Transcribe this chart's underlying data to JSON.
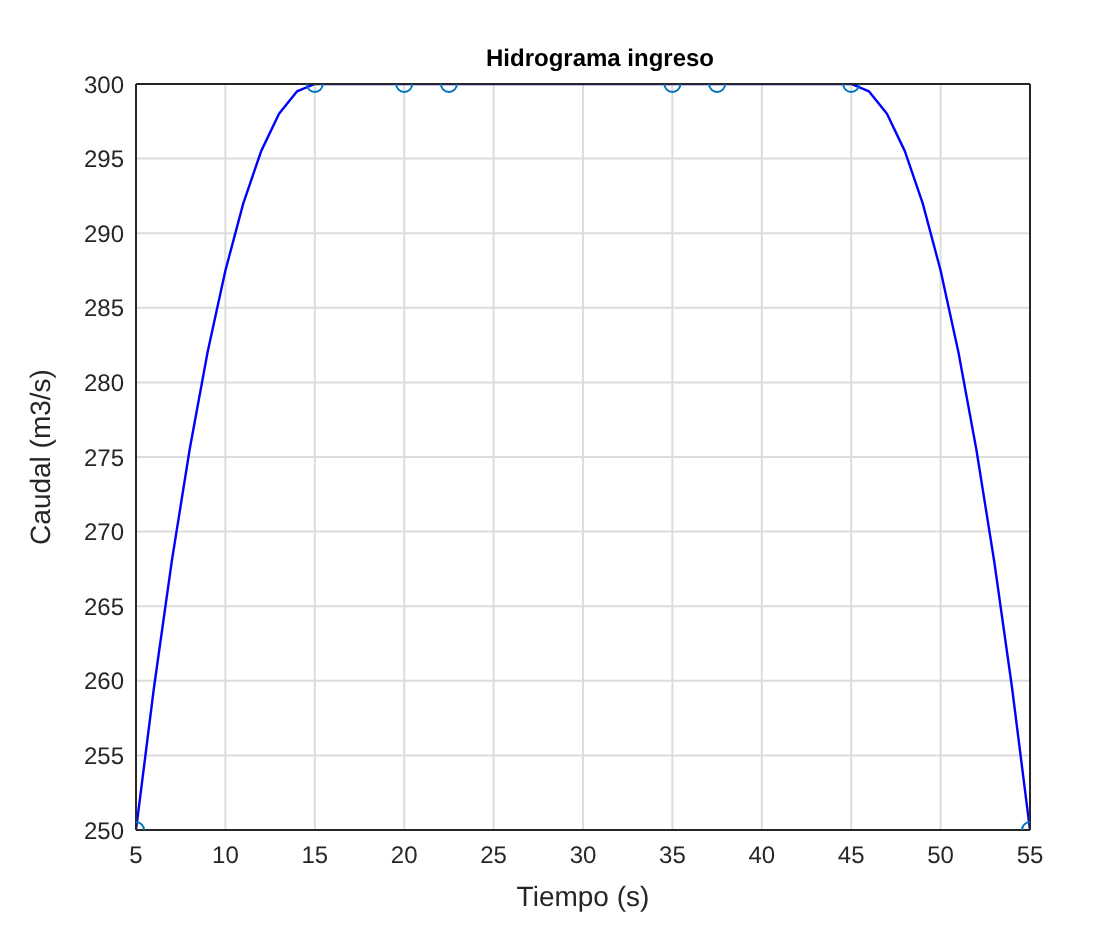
{
  "chart_data": {
    "type": "line",
    "title": "Hidrograma ingreso",
    "xlabel": "Tiempo (s)",
    "ylabel": "Caudal (m3/s)",
    "series": [
      {
        "color": "#0000ff",
        "marker": "none",
        "x": [
          5,
          6,
          7,
          8,
          9,
          10,
          11,
          12,
          13,
          14,
          15,
          20,
          22.5,
          35,
          37.5,
          45,
          46,
          47,
          48,
          49,
          50,
          51,
          52,
          53,
          54,
          55
        ],
        "values": [
          250,
          259.5,
          268,
          275.5,
          282,
          287.5,
          292,
          295.5,
          298,
          299.5,
          300,
          300,
          300,
          300,
          300,
          300,
          299.5,
          298,
          295.5,
          292,
          287.5,
          282,
          275.5,
          268,
          259.5,
          250
        ]
      },
      {
        "type": "scatter",
        "color": "#0072bd",
        "marker": "circle",
        "x": [
          5,
          15,
          20,
          22.5,
          35,
          37.5,
          45,
          55
        ],
        "values": [
          250,
          300,
          300,
          300,
          300,
          300,
          300,
          250
        ]
      }
    ],
    "xlim": [
      5,
      55
    ],
    "xticks": [
      5,
      10,
      15,
      20,
      25,
      30,
      35,
      40,
      45,
      50,
      55
    ],
    "ylim": [
      250,
      300
    ],
    "yticks": [
      250,
      255,
      260,
      265,
      270,
      275,
      280,
      285,
      290,
      295,
      300
    ],
    "grid": true
  }
}
